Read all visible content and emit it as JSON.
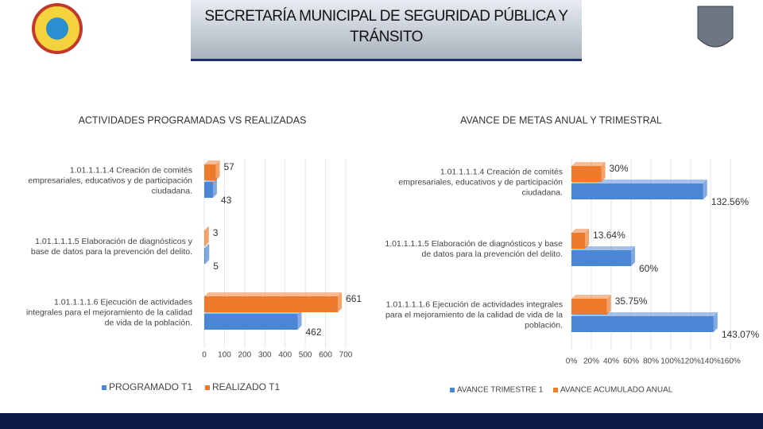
{
  "header": {
    "title": "SECRETARÍA MUNICIPAL DE SEGURIDAD PÚBLICA Y TRÁNSITO"
  },
  "chart_data": [
    {
      "type": "hbar",
      "title": "ACTIVIDADES PROGRAMADAS VS REALIZADAS",
      "categories": [
        "1.01.1.1.1.4 Creación de comités empresariales, educativos y de participación ciudadana.",
        "1.01.1.1.1.5 Elaboración de diagnósticos y base de datos para la prevención del delito.",
        "1.01.1.1.1.6 Ejecución de actividades integrales para el mejoramiento de la calidad de vida de la población."
      ],
      "series": [
        {
          "name": "PROGRAMADO T1",
          "color": "#4a86d4",
          "values": [
            43,
            5,
            462
          ]
        },
        {
          "name": "REALIZADO T1",
          "color": "#ee7a2b",
          "values": [
            57,
            3,
            661
          ]
        }
      ],
      "xlim": [
        0,
        700
      ],
      "xticks": [
        0,
        100,
        200,
        300,
        400,
        500,
        600,
        700
      ]
    },
    {
      "type": "hbar",
      "title": "AVANCE DE METAS ANUAL Y TRIMESTRAL",
      "categories": [
        "1.01.1.1.1.4 Creación de comités empresariales, educativos y de participación ciudadana.",
        "1.01.1.1.1.5 Elaboración de diagnósticos y base de datos para la prevención del delito.",
        "1.01.1.1.1.6 Ejecución de actividades integrales para el mejoramiento de la calidad de vida de la población."
      ],
      "series": [
        {
          "name": "AVANCE TRIMESTRE 1",
          "color": "#4a86d4",
          "values": [
            132.56,
            60,
            143.07
          ],
          "value_labels": [
            "132.56%",
            "60%",
            "143.07%"
          ]
        },
        {
          "name": "AVANCE ACUMULADO ANUAL",
          "color": "#ee7a2b",
          "values": [
            30,
            13.64,
            35.75
          ],
          "value_labels": [
            "30%",
            "13.64%",
            "35.75%"
          ]
        }
      ],
      "xlim": [
        0,
        160
      ],
      "xticks": [
        {
          "value": 0,
          "label": "0%"
        },
        {
          "value": 20,
          "label": "20%"
        },
        {
          "value": 40,
          "label": "40%"
        },
        {
          "value": 60,
          "label": "60%"
        },
        {
          "value": 80,
          "label": "80%"
        },
        {
          "value": 100,
          "label": "100%"
        },
        {
          "value": 120,
          "label": "120%"
        },
        {
          "value": 140,
          "label": "140%"
        },
        {
          "value": 160,
          "label": "160%"
        }
      ]
    }
  ]
}
